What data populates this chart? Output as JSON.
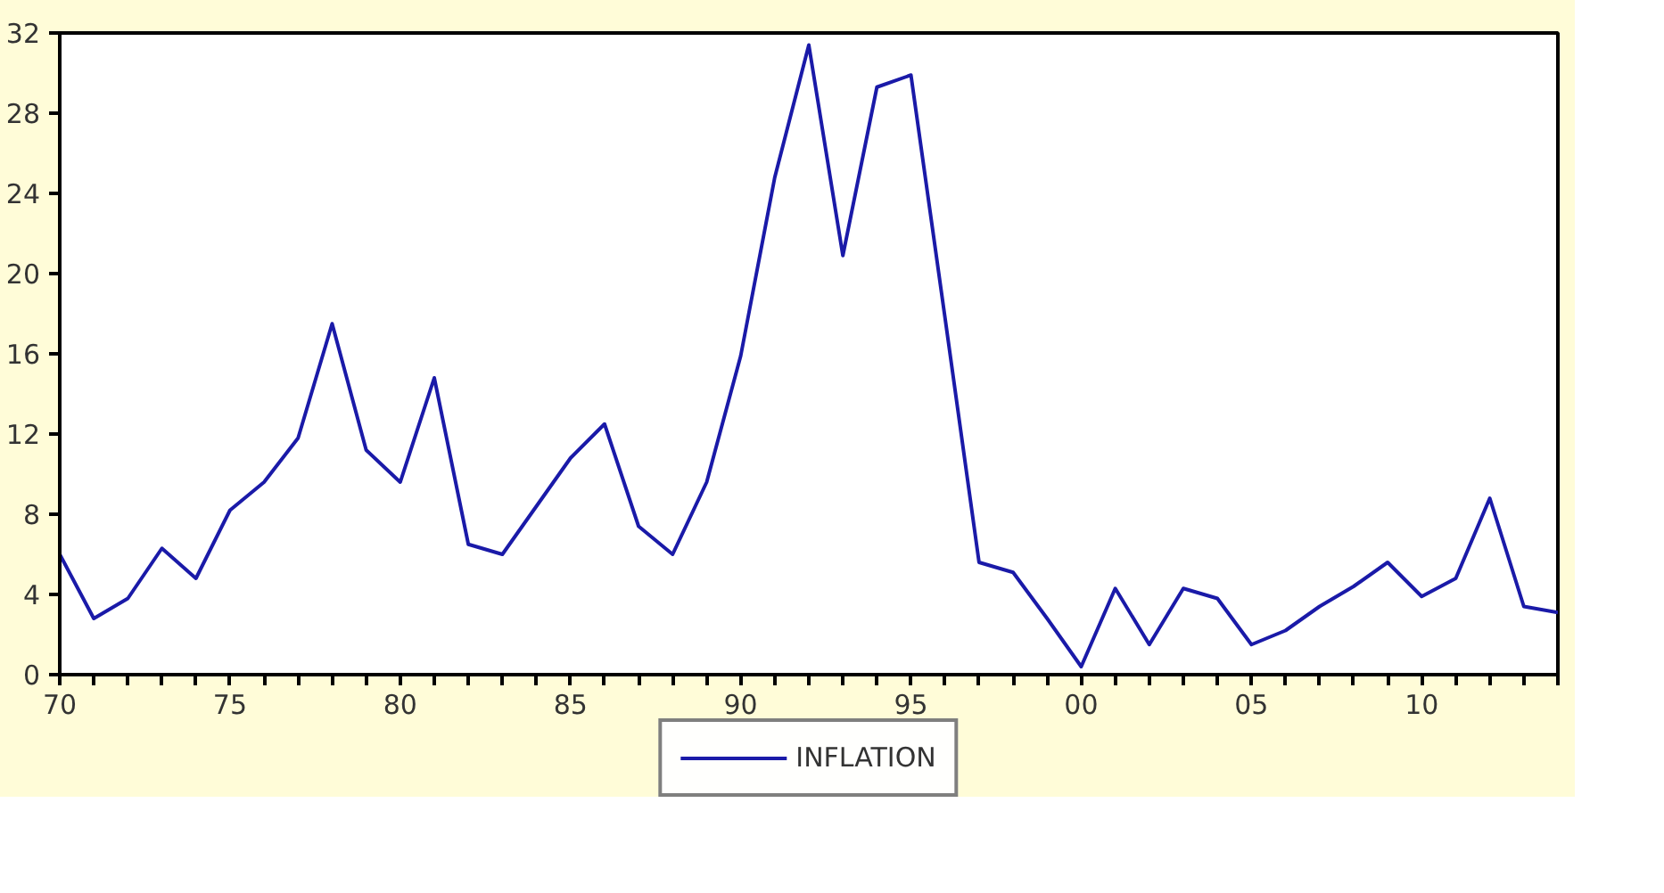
{
  "chart_data": {
    "type": "line",
    "x": [
      1970,
      1971,
      1972,
      1973,
      1974,
      1975,
      1976,
      1977,
      1978,
      1979,
      1980,
      1981,
      1982,
      1983,
      1984,
      1985,
      1986,
      1987,
      1988,
      1989,
      1990,
      1991,
      1992,
      1993,
      1994,
      1995,
      1996,
      1997,
      1998,
      1999,
      2000,
      2001,
      2002,
      2003,
      2004,
      2005,
      2006,
      2007,
      2008,
      2009,
      2010,
      2011,
      2012,
      2013,
      2014
    ],
    "series": [
      {
        "name": "INFLATION",
        "color": "#1a1aa8",
        "values": [
          6.0,
          2.8,
          3.8,
          6.3,
          4.8,
          8.2,
          9.6,
          11.8,
          17.5,
          11.2,
          9.6,
          14.8,
          6.5,
          6.0,
          8.4,
          10.8,
          12.5,
          7.4,
          6.0,
          9.6,
          15.9,
          24.8,
          31.4,
          20.9,
          29.3,
          29.9,
          17.8,
          5.6,
          5.1,
          2.8,
          0.4,
          4.3,
          1.5,
          4.3,
          3.8,
          1.5,
          2.2,
          3.4,
          4.4,
          5.6,
          3.9,
          4.8,
          8.8,
          3.4,
          3.1
        ]
      }
    ],
    "xlim": [
      1970,
      2014
    ],
    "ylim": [
      0,
      32
    ],
    "xticks": [
      {
        "value": 1970,
        "label": "70"
      },
      {
        "value": 1971,
        "label": null
      },
      {
        "value": 1972,
        "label": null
      },
      {
        "value": 1973,
        "label": null
      },
      {
        "value": 1974,
        "label": null
      },
      {
        "value": 1975,
        "label": "75"
      },
      {
        "value": 1976,
        "label": null
      },
      {
        "value": 1977,
        "label": null
      },
      {
        "value": 1978,
        "label": null
      },
      {
        "value": 1979,
        "label": null
      },
      {
        "value": 1980,
        "label": "80"
      },
      {
        "value": 1981,
        "label": null
      },
      {
        "value": 1982,
        "label": null
      },
      {
        "value": 1983,
        "label": null
      },
      {
        "value": 1984,
        "label": null
      },
      {
        "value": 1985,
        "label": "85"
      },
      {
        "value": 1986,
        "label": null
      },
      {
        "value": 1987,
        "label": null
      },
      {
        "value": 1988,
        "label": null
      },
      {
        "value": 1989,
        "label": null
      },
      {
        "value": 1990,
        "label": "90"
      },
      {
        "value": 1991,
        "label": null
      },
      {
        "value": 1992,
        "label": null
      },
      {
        "value": 1993,
        "label": null
      },
      {
        "value": 1994,
        "label": null
      },
      {
        "value": 1995,
        "label": "95"
      },
      {
        "value": 1996,
        "label": null
      },
      {
        "value": 1997,
        "label": null
      },
      {
        "value": 1998,
        "label": null
      },
      {
        "value": 1999,
        "label": null
      },
      {
        "value": 2000,
        "label": "00"
      },
      {
        "value": 2001,
        "label": null
      },
      {
        "value": 2002,
        "label": null
      },
      {
        "value": 2003,
        "label": null
      },
      {
        "value": 2004,
        "label": null
      },
      {
        "value": 2005,
        "label": "05"
      },
      {
        "value": 2006,
        "label": null
      },
      {
        "value": 2007,
        "label": null
      },
      {
        "value": 2008,
        "label": null
      },
      {
        "value": 2009,
        "label": null
      },
      {
        "value": 2010,
        "label": "10"
      },
      {
        "value": 2011,
        "label": null
      },
      {
        "value": 2012,
        "label": null
      },
      {
        "value": 2013,
        "label": null
      },
      {
        "value": 2014,
        "label": null
      }
    ],
    "yticks": [
      0,
      4,
      8,
      12,
      16,
      20,
      24,
      28,
      32
    ],
    "grid": false,
    "legend": "bottom",
    "marker": "none",
    "line_style": "solid"
  }
}
